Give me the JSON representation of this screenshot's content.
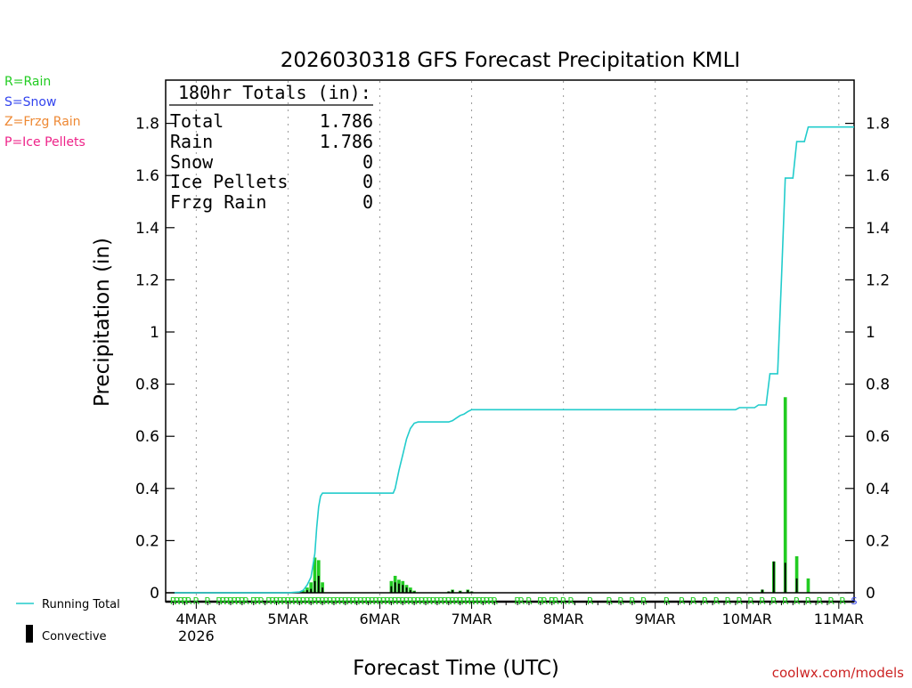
{
  "chart_data": {
    "type": "bar",
    "title": "2026030318 GFS Forecast Precipitation KMLI",
    "xlabel": "Forecast Time (UTC)",
    "ylabel": "Precipitation (in)",
    "ylim": [
      0,
      1.95
    ],
    "yticks": [
      0,
      0.2,
      0.4,
      0.6,
      0.8,
      1,
      1.2,
      1.4,
      1.6,
      1.8
    ],
    "ytick_labels": [
      "0",
      "0.2",
      "0.4",
      "0.6",
      "0.8",
      "1",
      "1.2",
      "1.4",
      "1.6",
      "1.8"
    ],
    "xlim_hours": [
      -2,
      178
    ],
    "xticks_hours": [
      6,
      30,
      54,
      78,
      102,
      126,
      150,
      174
    ],
    "xtick_labels": [
      "4MAR",
      "5MAR",
      "6MAR",
      "7MAR",
      "8MAR",
      "9MAR",
      "10MAR",
      "11MAR"
    ],
    "xtick_sublabel": "2026",
    "grid": "vertical dotted at day boundaries",
    "totals_box": {
      "header": "180hr Totals (in):",
      "rows": [
        {
          "label": "Total",
          "value": "1.786"
        },
        {
          "label": "Rain",
          "value": "1.786"
        },
        {
          "label": "Snow",
          "value": "0"
        },
        {
          "label": "Ice Pellets",
          "value": "0"
        },
        {
          "label": "Frzg Rain",
          "value": "0"
        }
      ]
    },
    "precip_type_legend": [
      {
        "label": "R=Rain",
        "color": "#22cc22"
      },
      {
        "label": "S=Snow",
        "color": "#3344ee"
      },
      {
        "label": "Z=Frzg Rain",
        "color": "#ee8833"
      },
      {
        "label": "P=Ice Pellets",
        "color": "#ee2288"
      }
    ],
    "series_legend": [
      {
        "label": "Running Total",
        "color": "#22cccc",
        "kind": "line"
      },
      {
        "label": "Convective",
        "color": "#000000",
        "kind": "bar"
      }
    ],
    "credit": "coolwx.com/models",
    "running_total": [
      [
        0,
        0
      ],
      [
        24,
        0
      ],
      [
        30,
        0
      ],
      [
        33,
        0.003
      ],
      [
        34,
        0.01
      ],
      [
        35,
        0.03
      ],
      [
        36,
        0.06
      ],
      [
        37,
        0.15
      ],
      [
        37.5,
        0.25
      ],
      [
        38,
        0.33
      ],
      [
        38.5,
        0.37
      ],
      [
        39,
        0.382
      ],
      [
        45,
        0.382
      ],
      [
        57.5,
        0.382
      ],
      [
        58,
        0.4
      ],
      [
        59,
        0.47
      ],
      [
        60,
        0.53
      ],
      [
        61,
        0.59
      ],
      [
        62,
        0.63
      ],
      [
        63,
        0.65
      ],
      [
        64,
        0.655
      ],
      [
        72,
        0.655
      ],
      [
        73,
        0.66
      ],
      [
        74,
        0.67
      ],
      [
        75,
        0.68
      ],
      [
        76,
        0.685
      ],
      [
        77,
        0.695
      ],
      [
        78,
        0.702
      ],
      [
        147,
        0.702
      ],
      [
        148,
        0.71
      ],
      [
        152,
        0.71
      ],
      [
        153,
        0.72
      ],
      [
        155,
        0.72
      ],
      [
        156,
        0.84
      ],
      [
        158,
        0.84
      ],
      [
        159,
        1.2
      ],
      [
        160,
        1.59
      ],
      [
        162,
        1.59
      ],
      [
        163,
        1.73
      ],
      [
        165,
        1.73
      ],
      [
        166,
        1.786
      ],
      [
        178,
        1.786
      ]
    ],
    "precip_bars": [
      {
        "hour": 34,
        "total": 0.01,
        "convective": 0.0
      },
      {
        "hour": 35,
        "total": 0.02,
        "convective": 0.01
      },
      {
        "hour": 36,
        "total": 0.04,
        "convective": 0.015
      },
      {
        "hour": 37,
        "total": 0.135,
        "convective": 0.045
      },
      {
        "hour": 38,
        "total": 0.125,
        "convective": 0.065
      },
      {
        "hour": 39,
        "total": 0.04,
        "convective": 0.02
      },
      {
        "hour": 57,
        "total": 0.045,
        "convective": 0.025
      },
      {
        "hour": 58,
        "total": 0.065,
        "convective": 0.04
      },
      {
        "hour": 59,
        "total": 0.05,
        "convective": 0.035
      },
      {
        "hour": 60,
        "total": 0.045,
        "convective": 0.03
      },
      {
        "hour": 61,
        "total": 0.03,
        "convective": 0.02
      },
      {
        "hour": 62,
        "total": 0.02,
        "convective": 0.01
      },
      {
        "hour": 63,
        "total": 0.008,
        "convective": 0.005
      },
      {
        "hour": 72,
        "total": 0.005,
        "convective": 0.005
      },
      {
        "hour": 73,
        "total": 0.012,
        "convective": 0.01
      },
      {
        "hour": 75,
        "total": 0.008,
        "convective": 0.006
      },
      {
        "hour": 77,
        "total": 0.012,
        "convective": 0.01
      },
      {
        "hour": 78,
        "total": 0.005,
        "convective": 0.005
      },
      {
        "hour": 154,
        "total": 0.012,
        "convective": 0.012
      },
      {
        "hour": 157,
        "total": 0.12,
        "convective": 0.12
      },
      {
        "hour": 160,
        "total": 0.75,
        "convective": 0.115
      },
      {
        "hour": 163,
        "total": 0.14,
        "convective": 0.055
      },
      {
        "hour": 166,
        "total": 0.055,
        "convective": 0.0
      }
    ],
    "ptype_marker_hours": [
      0,
      1,
      2,
      3,
      4,
      6,
      9,
      12,
      13,
      14,
      15,
      16,
      17,
      18,
      19,
      21,
      22,
      23,
      25,
      26,
      27,
      28,
      29,
      30,
      31,
      32,
      33,
      34,
      35,
      36,
      37,
      38,
      39,
      40,
      41,
      42,
      43,
      44,
      45,
      46,
      47,
      48,
      49,
      50,
      51,
      52,
      53,
      54,
      55,
      56,
      57,
      58,
      59,
      60,
      61,
      62,
      63,
      64,
      65,
      66,
      67,
      68,
      69,
      70,
      71,
      72,
      73,
      74,
      75,
      76,
      77,
      78,
      79,
      80,
      81,
      82,
      83,
      84,
      90,
      91,
      93,
      96,
      97,
      99,
      100,
      102,
      104,
      109,
      114,
      117,
      120,
      123,
      129,
      133,
      136,
      139,
      142,
      145,
      148,
      151,
      154,
      157,
      160,
      163,
      166,
      169,
      172,
      175
    ],
    "ptype_marker_letter": "R",
    "ptype_end_marker": "S"
  }
}
